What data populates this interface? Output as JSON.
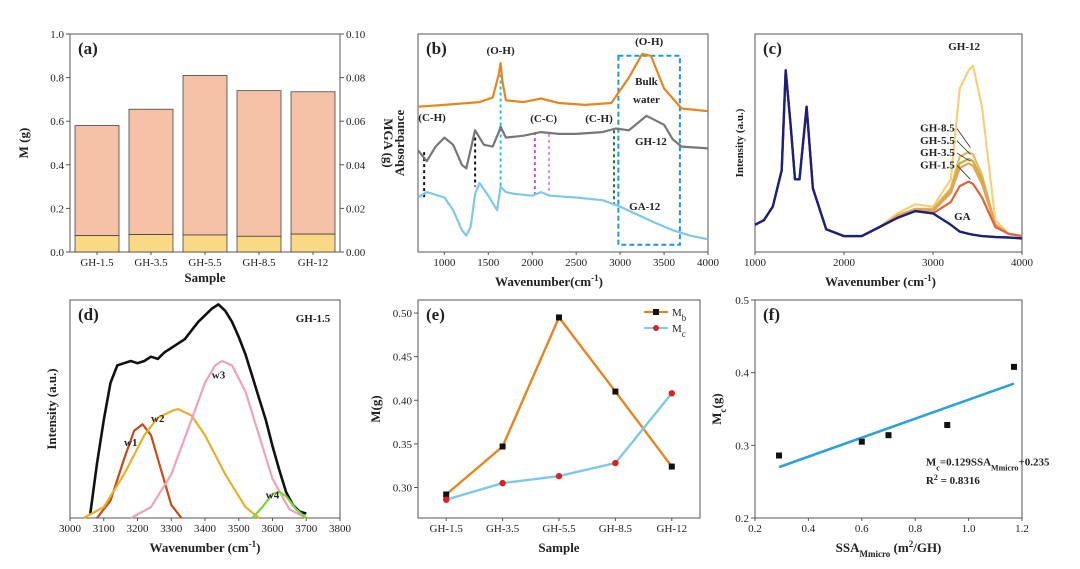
{
  "colors": {
    "bar_top": "#f4c1a6",
    "bar_bottom": "#f9d886",
    "orange": "#e5861e",
    "gray": "#777777",
    "blue": "#7ec8e8",
    "fit_blue": "#2ba3d8",
    "w1": "#c84a1a",
    "w2": "#e5b02a",
    "w3": "#f0a2b6",
    "w4": "#7ad63a",
    "cyan_dash": "#21c1e0",
    "magenta_dash": "#c34fd0",
    "dashbox": "#1e9ad6"
  },
  "chart_data": [
    {
      "panel": "(a)",
      "type": "bar",
      "categories": [
        "GH-1.5",
        "GH-3.5",
        "GH-5.5",
        "GH-8.5",
        "GH-12"
      ],
      "series": [
        {
          "role": "total",
          "values": [
            0.58,
            0.655,
            0.81,
            0.74,
            0.735
          ]
        },
        {
          "role": "lower",
          "values": [
            0.075,
            0.08,
            0.078,
            0.072,
            0.082
          ]
        }
      ],
      "xlabel": "Sample",
      "ylabel": "M (g)",
      "ylabel2": "MGA (g)",
      "ylim": [
        0,
        1.0
      ],
      "yticks": [
        "0.0",
        "0.2",
        "0.4",
        "0.6",
        "0.8",
        "1.0"
      ],
      "y2lim": [
        0,
        0.1
      ],
      "y2ticks": [
        "0.00",
        "0.02",
        "0.04",
        "0.06",
        "0.08",
        "0.10"
      ]
    },
    {
      "panel": "(b)",
      "type": "line",
      "xlabel": "Wavenumber(cm-1)",
      "ylabel": "Absorbance",
      "xlim": [
        700,
        4000
      ],
      "xticks": [
        "1000",
        "1500",
        "2000",
        "2500",
        "3000",
        "3500",
        "4000"
      ],
      "series": [
        {
          "name": "",
          "color_key": "orange",
          "x": [
            700,
            1000,
            1400,
            1550,
            1620,
            1640,
            1660,
            1700,
            1900,
            2100,
            2300,
            2600,
            2900,
            3100,
            3250,
            3350,
            3500,
            3700,
            4000
          ],
          "y": [
            8.0,
            8.1,
            8.25,
            8.5,
            9.8,
            10.4,
            9.4,
            8.35,
            8.25,
            8.45,
            8.2,
            8.1,
            8.2,
            9.6,
            10.9,
            10.8,
            9.0,
            7.9,
            7.75
          ]
        },
        {
          "name": "GH-12",
          "color_key": "gray",
          "x": [
            700,
            800,
            900,
            1000,
            1100,
            1200,
            1250,
            1350,
            1450,
            1550,
            1620,
            1640,
            1700,
            1900,
            2100,
            2300,
            2500,
            2800,
            2950,
            3100,
            3300,
            3500,
            3600,
            3700,
            4000
          ],
          "y": [
            5.6,
            5.0,
            5.8,
            6.3,
            5.9,
            4.8,
            4.6,
            6.7,
            5.9,
            5.8,
            6.6,
            6.9,
            6.3,
            6.4,
            6.6,
            6.5,
            6.5,
            6.6,
            6.8,
            6.7,
            7.5,
            7.0,
            6.2,
            5.8,
            5.7
          ]
        },
        {
          "name": "GA-12",
          "color_key": "blue",
          "x": [
            700,
            800,
            1000,
            1100,
            1200,
            1250,
            1300,
            1350,
            1400,
            1500,
            1600,
            1640,
            1700,
            1800,
            2000,
            2100,
            2200,
            2500,
            2800,
            3000,
            3200,
            3400,
            3600,
            3800,
            4000
          ],
          "y": [
            3.0,
            3.3,
            3.0,
            2.3,
            1.2,
            0.9,
            1.4,
            3.2,
            3.8,
            3.1,
            2.3,
            3.6,
            3.3,
            3.2,
            3.1,
            3.3,
            3.1,
            3.0,
            2.85,
            2.5,
            2.05,
            1.6,
            1.2,
            0.9,
            0.7
          ]
        }
      ],
      "annotations": [
        "(C-H)",
        "(O-H)",
        "(C-C)",
        "(C-H)",
        "(O-H)",
        "Bulk water",
        "GH-12",
        "GA-12"
      ]
    },
    {
      "panel": "(c)",
      "type": "line",
      "xlabel": "Wavenumber (cm-1)",
      "ylabel": "Intensity (a.u.)",
      "xlim": [
        1000,
        4000
      ],
      "xticks": [
        "1000",
        "2000",
        "3000",
        "4000"
      ],
      "series": [
        {
          "name": "GH-12",
          "color": "#f5d07a",
          "x": [
            1000,
            1100,
            1200,
            1300,
            1345,
            1400,
            1450,
            1500,
            1580,
            1650,
            1800,
            2000,
            2200,
            2400,
            2600,
            2800,
            3000,
            3200,
            3300,
            3400,
            3450,
            3550,
            3700,
            3850,
            4000
          ],
          "y": [
            0.6,
            0.7,
            1.0,
            1.8,
            4.0,
            2.8,
            1.6,
            1.6,
            3.2,
            1.4,
            0.5,
            0.35,
            0.35,
            0.55,
            0.85,
            1.05,
            1.0,
            1.6,
            3.6,
            4.0,
            4.1,
            3.2,
            0.7,
            0.4,
            0.35
          ]
        },
        {
          "name": "GH-8.5",
          "color": "#e8b860",
          "x": [
            1000,
            1100,
            1200,
            1300,
            1345,
            1400,
            1450,
            1500,
            1580,
            1650,
            1800,
            2000,
            2200,
            2400,
            2600,
            2800,
            3000,
            3200,
            3300,
            3400,
            3450,
            3550,
            3700,
            3850,
            4000
          ],
          "y": [
            0.6,
            0.7,
            1.0,
            1.8,
            4.0,
            2.8,
            1.6,
            1.6,
            3.2,
            1.4,
            0.5,
            0.35,
            0.35,
            0.55,
            0.8,
            0.95,
            0.95,
            1.4,
            2.1,
            2.2,
            2.15,
            1.7,
            0.6,
            0.4,
            0.35
          ]
        },
        {
          "name": "GH-5.5",
          "color": "#c9b03a",
          "x": [
            1000,
            1100,
            1200,
            1300,
            1345,
            1400,
            1450,
            1500,
            1580,
            1650,
            1800,
            2000,
            2200,
            2400,
            2600,
            2800,
            3000,
            3200,
            3300,
            3400,
            3450,
            3550,
            3700,
            3850,
            4000
          ],
          "y": [
            0.6,
            0.7,
            1.0,
            1.8,
            4.0,
            2.8,
            1.6,
            1.6,
            3.2,
            1.4,
            0.5,
            0.35,
            0.35,
            0.55,
            0.8,
            0.95,
            0.92,
            1.35,
            1.95,
            2.05,
            2.0,
            1.6,
            0.6,
            0.4,
            0.35
          ]
        },
        {
          "name": "GH-3.5",
          "color": "#e9a25e",
          "x": [
            1000,
            1100,
            1200,
            1300,
            1345,
            1400,
            1450,
            1500,
            1580,
            1650,
            1800,
            2000,
            2200,
            2400,
            2600,
            2800,
            3000,
            3200,
            3300,
            3400,
            3450,
            3550,
            3700,
            3850,
            4000
          ],
          "y": [
            0.6,
            0.7,
            1.0,
            1.8,
            4.0,
            2.8,
            1.6,
            1.6,
            3.2,
            1.4,
            0.5,
            0.35,
            0.35,
            0.55,
            0.78,
            0.92,
            0.9,
            1.3,
            1.85,
            1.95,
            1.9,
            1.5,
            0.6,
            0.4,
            0.35
          ]
        },
        {
          "name": "GH-1.5",
          "color": "#e0643a",
          "x": [
            1000,
            1100,
            1200,
            1300,
            1345,
            1400,
            1450,
            1500,
            1580,
            1650,
            1800,
            2000,
            2200,
            2400,
            2600,
            2800,
            3000,
            3200,
            3300,
            3400,
            3450,
            3550,
            3700,
            3850,
            4000
          ],
          "y": [
            0.6,
            0.7,
            1.0,
            1.8,
            4.0,
            2.8,
            1.6,
            1.6,
            3.2,
            1.4,
            0.5,
            0.35,
            0.35,
            0.55,
            0.75,
            0.9,
            0.85,
            1.1,
            1.45,
            1.55,
            1.5,
            1.2,
            0.55,
            0.4,
            0.35
          ]
        },
        {
          "name": "GA",
          "color": "#1a2080",
          "x": [
            1000,
            1100,
            1200,
            1300,
            1345,
            1400,
            1450,
            1500,
            1580,
            1650,
            1800,
            2000,
            2200,
            2400,
            2600,
            2800,
            3000,
            3200,
            3300,
            3400,
            3450,
            3550,
            3700,
            3850,
            4000
          ],
          "y": [
            0.6,
            0.7,
            1.0,
            1.8,
            4.0,
            2.8,
            1.6,
            1.6,
            3.2,
            1.4,
            0.5,
            0.35,
            0.35,
            0.55,
            0.75,
            0.9,
            0.85,
            0.6,
            0.45,
            0.4,
            0.38,
            0.35,
            0.33,
            0.32,
            0.3
          ]
        }
      ]
    },
    {
      "panel": "(d)",
      "type": "line",
      "title": "GH-1.5",
      "xlabel": "Wavenumber (cm-1)",
      "ylabel": "Intensity (a.u.)",
      "xlim": [
        3000,
        3800
      ],
      "xticks": [
        "3000",
        "3100",
        "3200",
        "3300",
        "3400",
        "3500",
        "3600",
        "3700",
        "3800"
      ],
      "series": [
        {
          "name": "",
          "color_key": "black",
          "x": [
            3060,
            3080,
            3100,
            3120,
            3140,
            3160,
            3180,
            3200,
            3220,
            3240,
            3260,
            3280,
            3300,
            3320,
            3340,
            3360,
            3380,
            3400,
            3420,
            3440,
            3460,
            3480,
            3500,
            3520,
            3540,
            3560,
            3580,
            3600,
            3620,
            3640,
            3660,
            3680,
            3700
          ],
          "y": [
            0.02,
            0.25,
            0.45,
            0.62,
            0.7,
            0.71,
            0.72,
            0.71,
            0.72,
            0.74,
            0.73,
            0.76,
            0.78,
            0.8,
            0.82,
            0.86,
            0.9,
            0.93,
            0.96,
            0.98,
            0.95,
            0.9,
            0.83,
            0.75,
            0.65,
            0.55,
            0.45,
            0.33,
            0.22,
            0.12,
            0.06,
            0.03,
            0.02
          ]
        },
        {
          "name": "w1",
          "color_key": "w1",
          "x": [
            3080,
            3120,
            3160,
            3190,
            3215,
            3240,
            3270,
            3300,
            3330
          ],
          "y": [
            0.0,
            0.08,
            0.27,
            0.4,
            0.43,
            0.38,
            0.22,
            0.06,
            0.0
          ]
        },
        {
          "name": "w2",
          "color_key": "w2",
          "x": [
            3040,
            3100,
            3160,
            3220,
            3260,
            3300,
            3320,
            3360,
            3400,
            3460,
            3520,
            3560
          ],
          "y": [
            0.0,
            0.05,
            0.2,
            0.38,
            0.46,
            0.49,
            0.5,
            0.47,
            0.38,
            0.2,
            0.05,
            0.0
          ]
        },
        {
          "name": "w3",
          "color_key": "w3",
          "x": [
            3180,
            3240,
            3300,
            3360,
            3400,
            3430,
            3450,
            3480,
            3520,
            3560,
            3600,
            3650,
            3700
          ],
          "y": [
            0.0,
            0.05,
            0.2,
            0.45,
            0.62,
            0.7,
            0.72,
            0.7,
            0.58,
            0.38,
            0.18,
            0.04,
            0.0
          ]
        },
        {
          "name": "w4",
          "color_key": "w4",
          "x": [
            3540,
            3570,
            3600,
            3620,
            3640,
            3670,
            3700
          ],
          "y": [
            0.0,
            0.05,
            0.11,
            0.12,
            0.1,
            0.04,
            0.0
          ]
        }
      ],
      "labels": [
        "w1",
        "w2",
        "w3",
        "w4"
      ]
    },
    {
      "panel": "(e)",
      "type": "line",
      "categories": [
        "GH-1.5",
        "GH-3.5",
        "GH-5.5",
        "GH-8.5",
        "GH-12"
      ],
      "series": [
        {
          "name": "Mb",
          "color_key": "orange",
          "values": [
            0.292,
            0.347,
            0.495,
            0.41,
            0.324
          ]
        },
        {
          "name": "Mc",
          "color_key": "blue",
          "values": [
            0.286,
            0.305,
            0.313,
            0.328,
            0.408
          ]
        }
      ],
      "xlabel": "Sample",
      "ylabel": "M(g)",
      "ylim": [
        0.265,
        0.515
      ],
      "yticks": [
        "0.30",
        "0.35",
        "0.40",
        "0.45",
        "0.50"
      ],
      "legend": "top-right"
    },
    {
      "panel": "(f)",
      "type": "scatter",
      "x": [
        0.29,
        0.6,
        0.7,
        0.92,
        1.17
      ],
      "y": [
        0.286,
        0.305,
        0.314,
        0.328,
        0.408
      ],
      "fit": {
        "x": [
          0.29,
          1.17
        ],
        "y": [
          0.27,
          0.385
        ]
      },
      "xlabel": "SSAMmicro (m2/GH)",
      "ylabel": "Mc(g)",
      "xlim": [
        0.2,
        1.2
      ],
      "ylim": [
        0.2,
        0.5
      ],
      "xticks": [
        "0.2",
        "0.4",
        "0.6",
        "0.8",
        "1.0",
        "1.2"
      ],
      "yticks": [
        "0.2",
        "0.3",
        "0.4",
        "0.5"
      ],
      "equation": "Mc=0.129SSAMmicro+0.235",
      "r2": "R2 = 0.8316"
    }
  ]
}
